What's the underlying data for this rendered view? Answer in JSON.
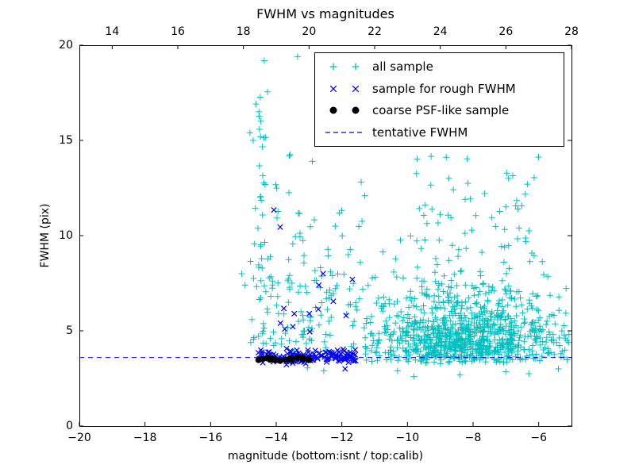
{
  "chart_data": {
    "type": "scatter",
    "title": "FWHM vs magnitudes",
    "xlabel": "magnitude (bottom:isnt / top:calib)",
    "ylabel": "FWHM (pix)",
    "x_bottom": {
      "min": -20,
      "max": -5,
      "ticks": [
        -20,
        -18,
        -16,
        -14,
        -12,
        -10,
        -8,
        -6
      ],
      "labels": [
        "−20",
        "−18",
        "−16",
        "−14",
        "−12",
        "−10",
        "−8",
        "−6"
      ]
    },
    "x_top": {
      "min": 13,
      "max": 28,
      "ticks": [
        14,
        16,
        18,
        20,
        22,
        24,
        26,
        28
      ],
      "labels": [
        "14",
        "16",
        "18",
        "20",
        "22",
        "24",
        "26",
        "28"
      ]
    },
    "y_axis": {
      "min": 0,
      "max": 20,
      "ticks": [
        0,
        5,
        10,
        15,
        20
      ],
      "labels": [
        "0",
        "5",
        "10",
        "15",
        "20"
      ]
    },
    "tentative_fwhm": 3.6,
    "seed": 7,
    "colors": {
      "all_sample": "#00bfbf",
      "rough_fwhm": "#0000ff",
      "coarse_psf": "#000000",
      "tentative_line": "#0000ff"
    },
    "series": [
      {
        "name": "all sample",
        "marker": "plus",
        "color": "#00bfbf",
        "clusters": [
          {
            "n": 650,
            "x": {
              "type": "normal",
              "mu": -8.2,
              "sd": 1.1,
              "min": -11.0,
              "max": -5.05
            },
            "y": {
              "type": "gamma2",
              "base": 3.25,
              "scale": 0.8,
              "max": 13.5
            }
          },
          {
            "n": 320,
            "x": {
              "type": "uniform",
              "a": -11.3,
              "b": -5.05
            },
            "y": {
              "type": "gamma2",
              "base": 3.25,
              "scale": 1.0,
              "max": 14.5
            }
          },
          {
            "n": 150,
            "x": {
              "type": "uniform",
              "a": -14.8,
              "b": -11.3
            },
            "y": {
              "type": "gamma2",
              "base": 3.7,
              "scale": 1.8,
              "max": 15.2
            }
          },
          {
            "n": 30,
            "x": {
              "type": "normal",
              "mu": -14.45,
              "sd": 0.12,
              "min": -14.85,
              "max": -14.05
            },
            "y": {
              "type": "uniform",
              "a": 6.5,
              "b": 19.6
            }
          },
          {
            "n": 55,
            "x": {
              "type": "uniform",
              "a": -9.8,
              "b": -6.0
            },
            "y": {
              "type": "uniform",
              "a": 8.5,
              "b": 14.2
            }
          }
        ],
        "points": [
          [
            -13.35,
            19.4
          ],
          [
            -12.9,
            13.9
          ],
          [
            -13.6,
            14.2
          ],
          [
            -14.8,
            15.4
          ],
          [
            -11.3,
            12.1
          ],
          [
            -12.2,
            10.5
          ],
          [
            -11.8,
            9.0
          ],
          [
            -15.05,
            8.0
          ],
          [
            -14.95,
            7.4
          ],
          [
            -13.05,
            3.05
          ],
          [
            -12.55,
            2.9
          ],
          [
            -9.8,
            2.6
          ],
          [
            -8.4,
            2.7
          ],
          [
            -7.0,
            2.85
          ],
          [
            -5.4,
            3.0
          ],
          [
            -10.3,
            2.9
          ],
          [
            -6.3,
            2.75
          ]
        ]
      },
      {
        "name": "sample for rough FWHM",
        "marker": "x",
        "color": "#0000ff",
        "clusters": [
          {
            "n": 135,
            "x": {
              "type": "uniform",
              "a": -14.55,
              "b": -11.55
            },
            "y": {
              "type": "normal",
              "mu": 3.65,
              "sd": 0.17,
              "min": 3.2,
              "max": 4.25
            }
          },
          {
            "n": 7,
            "x": {
              "type": "uniform",
              "a": -14.3,
              "b": -11.7
            },
            "y": {
              "type": "uniform",
              "a": 4.4,
              "b": 6.3
            }
          }
        ],
        "points": [
          [
            -14.07,
            11.35
          ],
          [
            -13.88,
            10.45
          ],
          [
            -12.57,
            8.0
          ],
          [
            -11.68,
            7.7
          ],
          [
            -12.26,
            6.55
          ],
          [
            -11.87,
            5.8
          ],
          [
            -13.45,
            5.9
          ],
          [
            -11.9,
            3.0
          ],
          [
            -12.7,
            7.4
          ]
        ]
      },
      {
        "name": "coarse PSF-like sample",
        "marker": "dot",
        "color": "#000000",
        "clusters": [
          {
            "n": 22,
            "x": {
              "type": "uniform",
              "a": -14.55,
              "b": -12.92
            },
            "y": {
              "type": "normal",
              "mu": 3.52,
              "sd": 0.055,
              "min": 3.4,
              "max": 3.64
            }
          }
        ],
        "points": []
      }
    ],
    "legend": {
      "items": [
        {
          "label": "all sample",
          "marker": "plus",
          "color": "#00bfbf"
        },
        {
          "label": "sample for rough FWHM",
          "marker": "x",
          "color": "#0000ff"
        },
        {
          "label": "coarse PSF-like sample",
          "marker": "dot",
          "color": "#000000"
        },
        {
          "label": "tentative FWHM",
          "marker": "dashed-line",
          "color": "#0000ff"
        }
      ]
    }
  }
}
